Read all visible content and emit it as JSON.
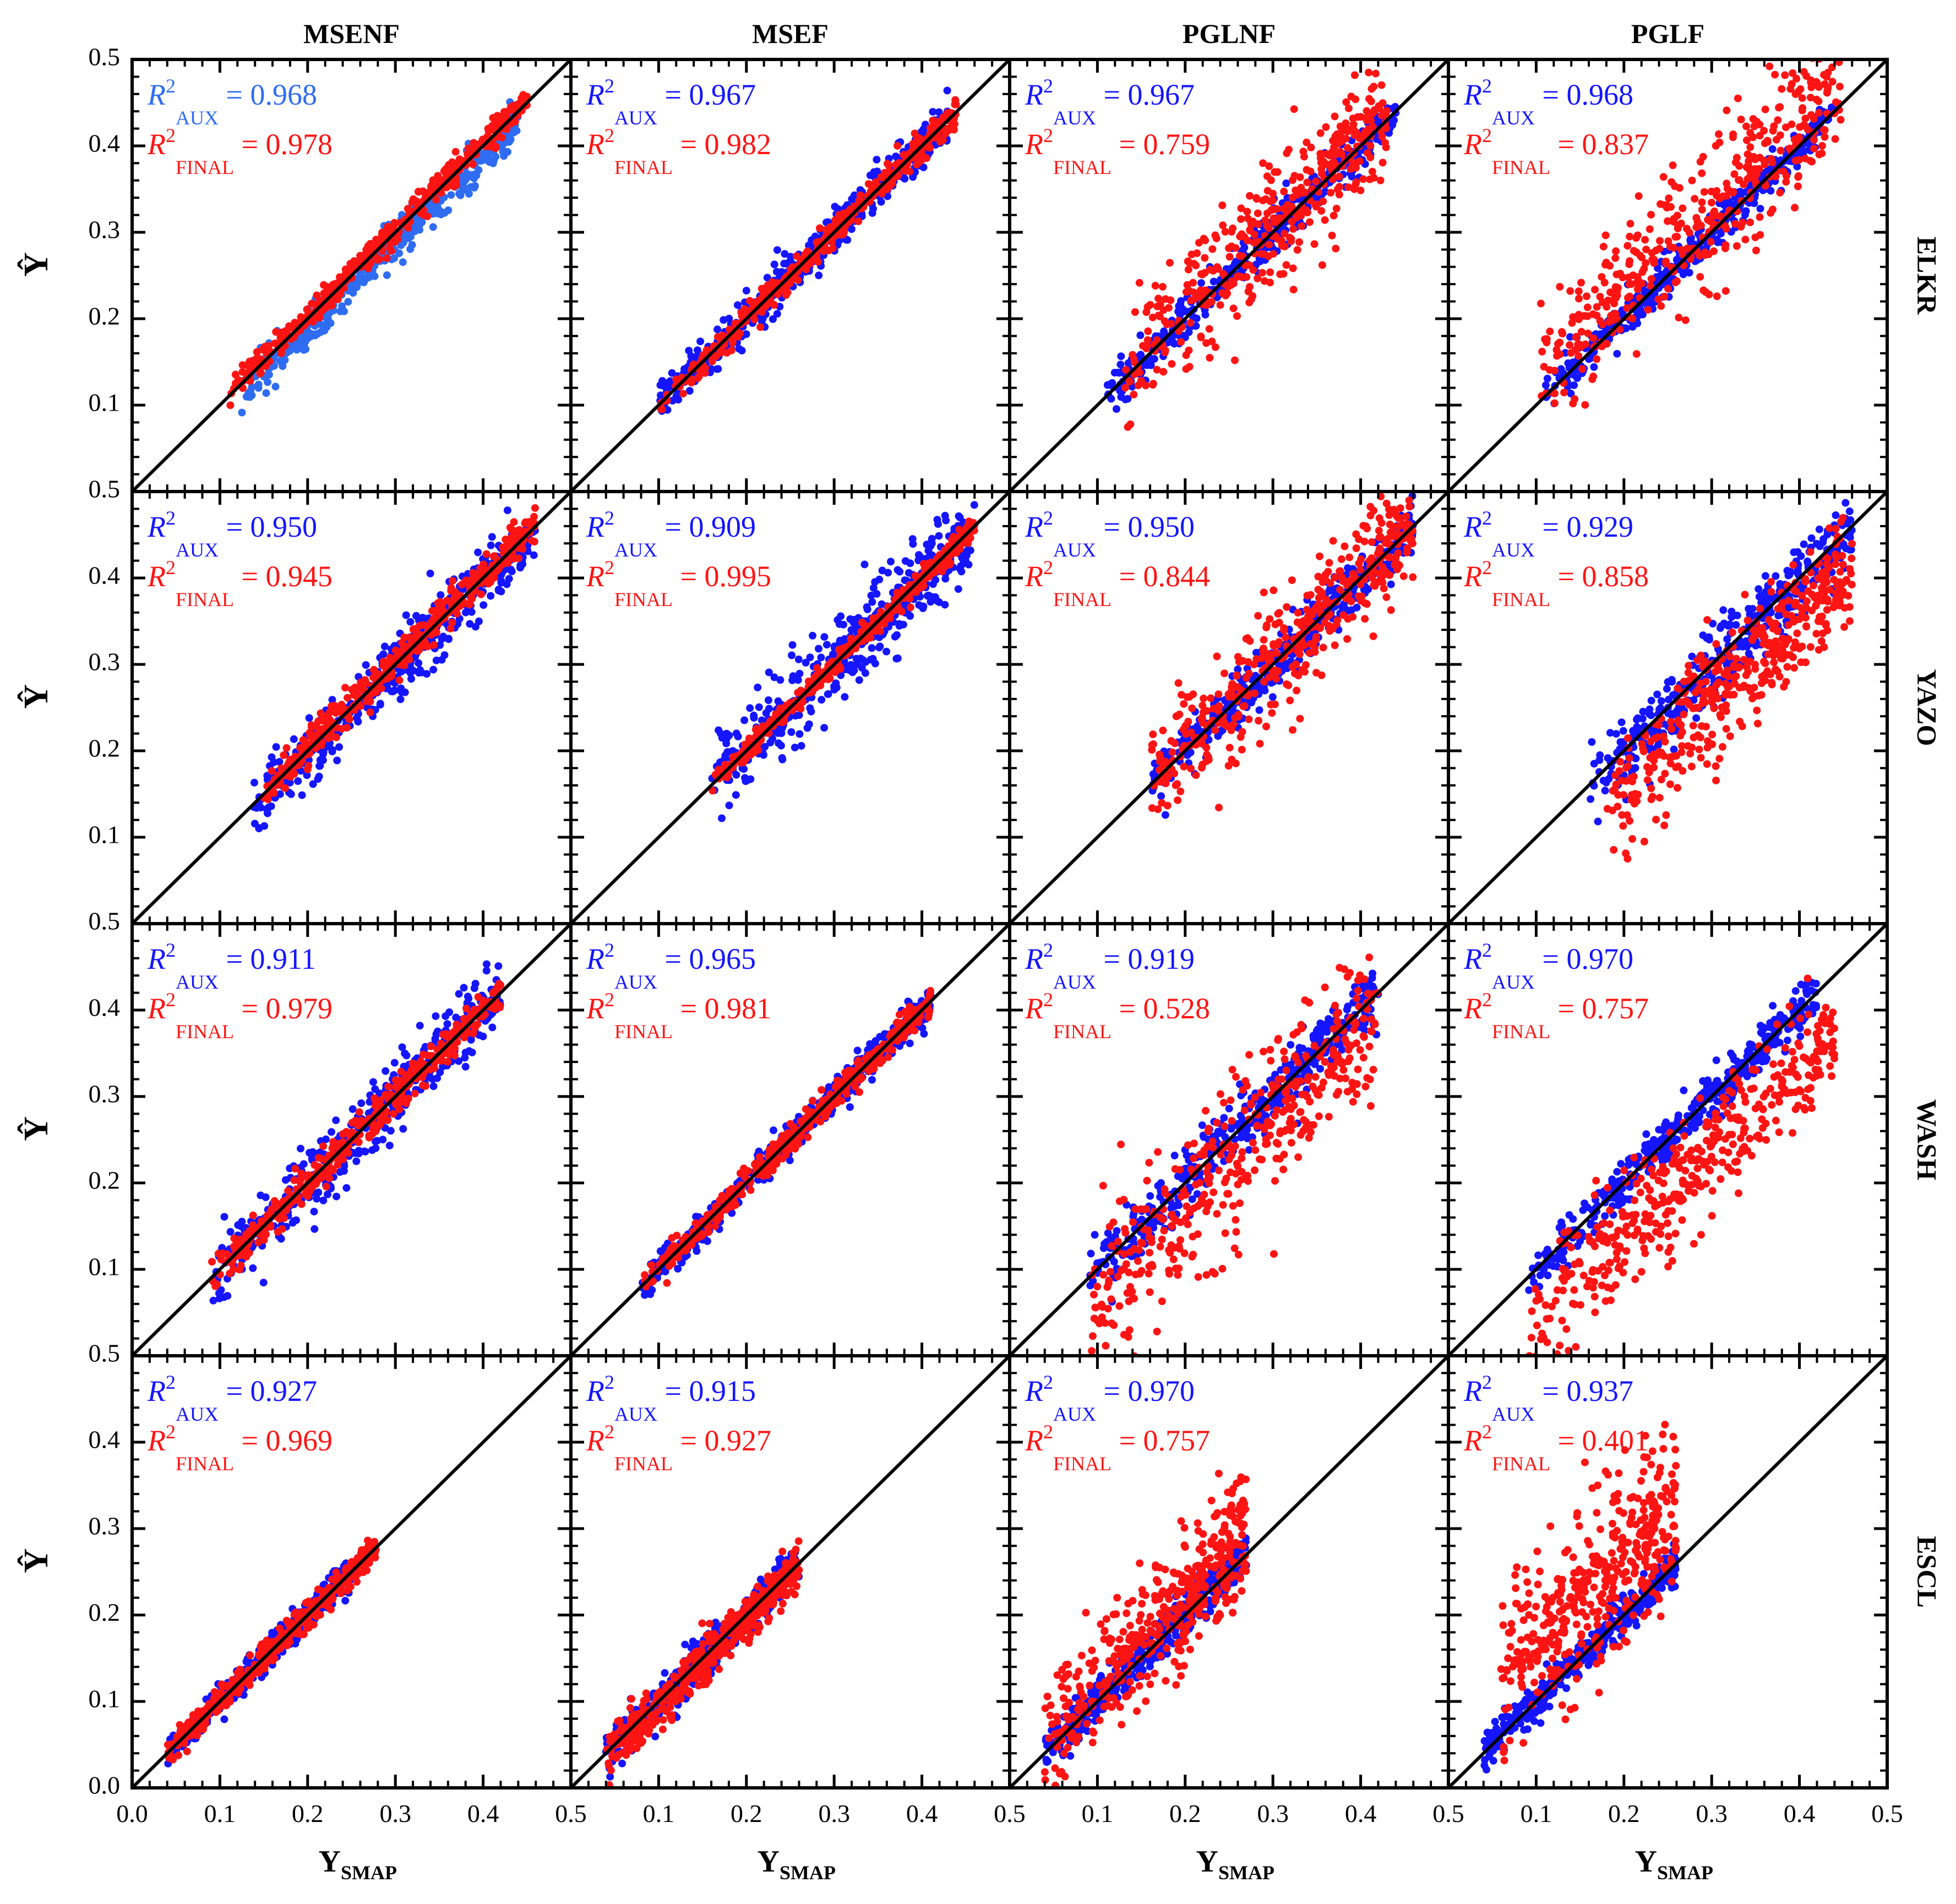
{
  "chart_data": {
    "type": "scatter",
    "layout": "4 rows x 4 columns grid of scatter panels",
    "column_titles": [
      "MSENF",
      "MSEF",
      "PGLNF",
      "PGLF"
    ],
    "row_titles": [
      "ELKR",
      "YAZO",
      "WASH",
      "ESCL"
    ],
    "xlabel": {
      "main": "Y",
      "sub": "SMAP"
    },
    "ylabel": "Ŷ",
    "xlim": [
      0.0,
      0.5
    ],
    "ylim": [
      0.0,
      0.5
    ],
    "x_tick_labels": [
      "0.0",
      "0.1",
      "0.2",
      "0.3",
      "0.4",
      "0.5"
    ],
    "y_tick_labels": [
      "0.0",
      "0.1",
      "0.2",
      "0.3",
      "0.4",
      "0.5"
    ],
    "reference_line": "1:1",
    "series": [
      {
        "name": "AUX",
        "color": "#1515ff"
      },
      {
        "name": "FINAL",
        "color": "#ff1414"
      }
    ],
    "annotation_symbol": "R",
    "annotation_sup": "2",
    "annotation_eq": "=",
    "panels": [
      {
        "row": "ELKR",
        "col": "MSENF",
        "r2_aux": "0.968",
        "r2_final": "0.978",
        "aux_color": "#2f6cf2",
        "aux": {
          "range": [
            0.12,
            0.44
          ],
          "offset": -0.012,
          "spread": 0.012
        },
        "final": {
          "range": [
            0.11,
            0.45
          ],
          "offset": 0.004,
          "spread": 0.008
        }
      },
      {
        "row": "ELKR",
        "col": "MSEF",
        "r2_aux": "0.967",
        "r2_final": "0.982",
        "aux_color": "#1515ff",
        "aux": {
          "range": [
            0.1,
            0.43
          ],
          "offset": 0.0,
          "spread": 0.012
        },
        "final": {
          "range": [
            0.1,
            0.44
          ],
          "offset": 0.0,
          "spread": 0.008
        }
      },
      {
        "row": "ELKR",
        "col": "PGLNF",
        "r2_aux": "0.967",
        "r2_final": "0.759",
        "aux_color": "#1515ff",
        "aux": {
          "range": [
            0.11,
            0.44
          ],
          "offset": 0.0,
          "spread": 0.012
        },
        "final": {
          "range": [
            0.13,
            0.43
          ],
          "offset": 0.01,
          "spread": 0.035
        }
      },
      {
        "row": "ELKR",
        "col": "PGLF",
        "r2_aux": "0.968",
        "r2_final": "0.837",
        "aux_color": "#1515ff",
        "aux": {
          "range": [
            0.11,
            0.44
          ],
          "offset": 0.0,
          "spread": 0.012
        },
        "final": {
          "range": [
            0.1,
            0.45
          ],
          "offset": 0.03,
          "spread": 0.04
        }
      },
      {
        "row": "YAZO",
        "col": "MSENF",
        "r2_aux": "0.950",
        "r2_final": "0.945",
        "aux_color": "#1515ff",
        "aux": {
          "range": [
            0.13,
            0.46
          ],
          "offset": -0.005,
          "spread": 0.018
        },
        "final": {
          "range": [
            0.15,
            0.46
          ],
          "offset": 0.003,
          "spread": 0.01
        }
      },
      {
        "row": "YAZO",
        "col": "MSEF",
        "r2_aux": "0.909",
        "r2_final": "0.995",
        "aux_color": "#1515ff",
        "aux": {
          "range": [
            0.16,
            0.46
          ],
          "offset": 0.0,
          "spread": 0.025
        },
        "final": {
          "range": [
            0.16,
            0.46
          ],
          "offset": 0.0,
          "spread": 0.006
        }
      },
      {
        "row": "YAZO",
        "col": "PGLNF",
        "r2_aux": "0.950",
        "r2_final": "0.844",
        "aux_color": "#1515ff",
        "aux": {
          "range": [
            0.16,
            0.46
          ],
          "offset": 0.0,
          "spread": 0.015
        },
        "final": {
          "range": [
            0.16,
            0.46
          ],
          "offset": 0.0,
          "spread": 0.035
        }
      },
      {
        "row": "YAZO",
        "col": "PGLF",
        "r2_aux": "0.929",
        "r2_final": "0.858",
        "aux_color": "#1515ff",
        "aux": {
          "range": [
            0.16,
            0.46
          ],
          "offset": -0.005,
          "spread": 0.02
        },
        "final": {
          "range": [
            0.18,
            0.46
          ],
          "offset": -0.045,
          "spread": 0.035
        }
      },
      {
        "row": "WASH",
        "col": "MSENF",
        "r2_aux": "0.911",
        "r2_final": "0.979",
        "aux_color": "#1515ff",
        "aux": {
          "range": [
            0.09,
            0.42
          ],
          "offset": 0.0,
          "spread": 0.02
        },
        "final": {
          "range": [
            0.09,
            0.42
          ],
          "offset": 0.0,
          "spread": 0.01
        }
      },
      {
        "row": "WASH",
        "col": "MSEF",
        "r2_aux": "0.965",
        "r2_final": "0.981",
        "aux_color": "#1515ff",
        "aux": {
          "range": [
            0.08,
            0.41
          ],
          "offset": 0.0,
          "spread": 0.01
        },
        "final": {
          "range": [
            0.08,
            0.41
          ],
          "offset": 0.0,
          "spread": 0.008
        }
      },
      {
        "row": "WASH",
        "col": "PGLNF",
        "r2_aux": "0.919",
        "r2_final": "0.528",
        "aux_color": "#1515ff",
        "aux": {
          "range": [
            0.09,
            0.42
          ],
          "offset": 0.0,
          "spread": 0.018
        },
        "final": {
          "range": [
            0.09,
            0.42
          ],
          "offset": -0.03,
          "spread": 0.045
        }
      },
      {
        "row": "WASH",
        "col": "PGLF",
        "r2_aux": "0.970",
        "r2_final": "0.757",
        "aux_color": "#1515ff",
        "aux": {
          "range": [
            0.09,
            0.42
          ],
          "offset": 0.0,
          "spread": 0.014
        },
        "final": {
          "range": [
            0.09,
            0.44
          ],
          "offset": -0.06,
          "spread": 0.035
        }
      },
      {
        "row": "ESCL",
        "col": "MSENF",
        "r2_aux": "0.927",
        "r2_final": "0.969",
        "aux_color": "#1515ff",
        "aux": {
          "range": [
            0.04,
            0.25
          ],
          "offset": 0.0,
          "spread": 0.008
        },
        "final": {
          "range": [
            0.04,
            0.28
          ],
          "offset": 0.0,
          "spread": 0.008
        }
      },
      {
        "row": "ESCL",
        "col": "MSEF",
        "r2_aux": "0.915",
        "r2_final": "0.927",
        "aux_color": "#1515ff",
        "aux": {
          "range": [
            0.04,
            0.26
          ],
          "offset": 0.0,
          "spread": 0.012
        },
        "final": {
          "range": [
            0.04,
            0.26
          ],
          "offset": -0.005,
          "spread": 0.014
        }
      },
      {
        "row": "ESCL",
        "col": "PGLNF",
        "r2_aux": "0.970",
        "r2_final": "0.757",
        "aux_color": "#1515ff",
        "aux": {
          "range": [
            0.04,
            0.27
          ],
          "offset": 0.0,
          "spread": 0.012
        },
        "final": {
          "range": [
            0.04,
            0.27
          ],
          "offset": 0.02,
          "spread": 0.035
        }
      },
      {
        "row": "ESCL",
        "col": "PGLF",
        "r2_aux": "0.937",
        "r2_final": "0.401",
        "aux_color": "#1515ff",
        "aux": {
          "range": [
            0.04,
            0.26
          ],
          "offset": 0.0,
          "spread": 0.01
        },
        "final": {
          "range": [
            0.06,
            0.26
          ],
          "offset": 0.07,
          "spread": 0.05
        }
      }
    ]
  }
}
